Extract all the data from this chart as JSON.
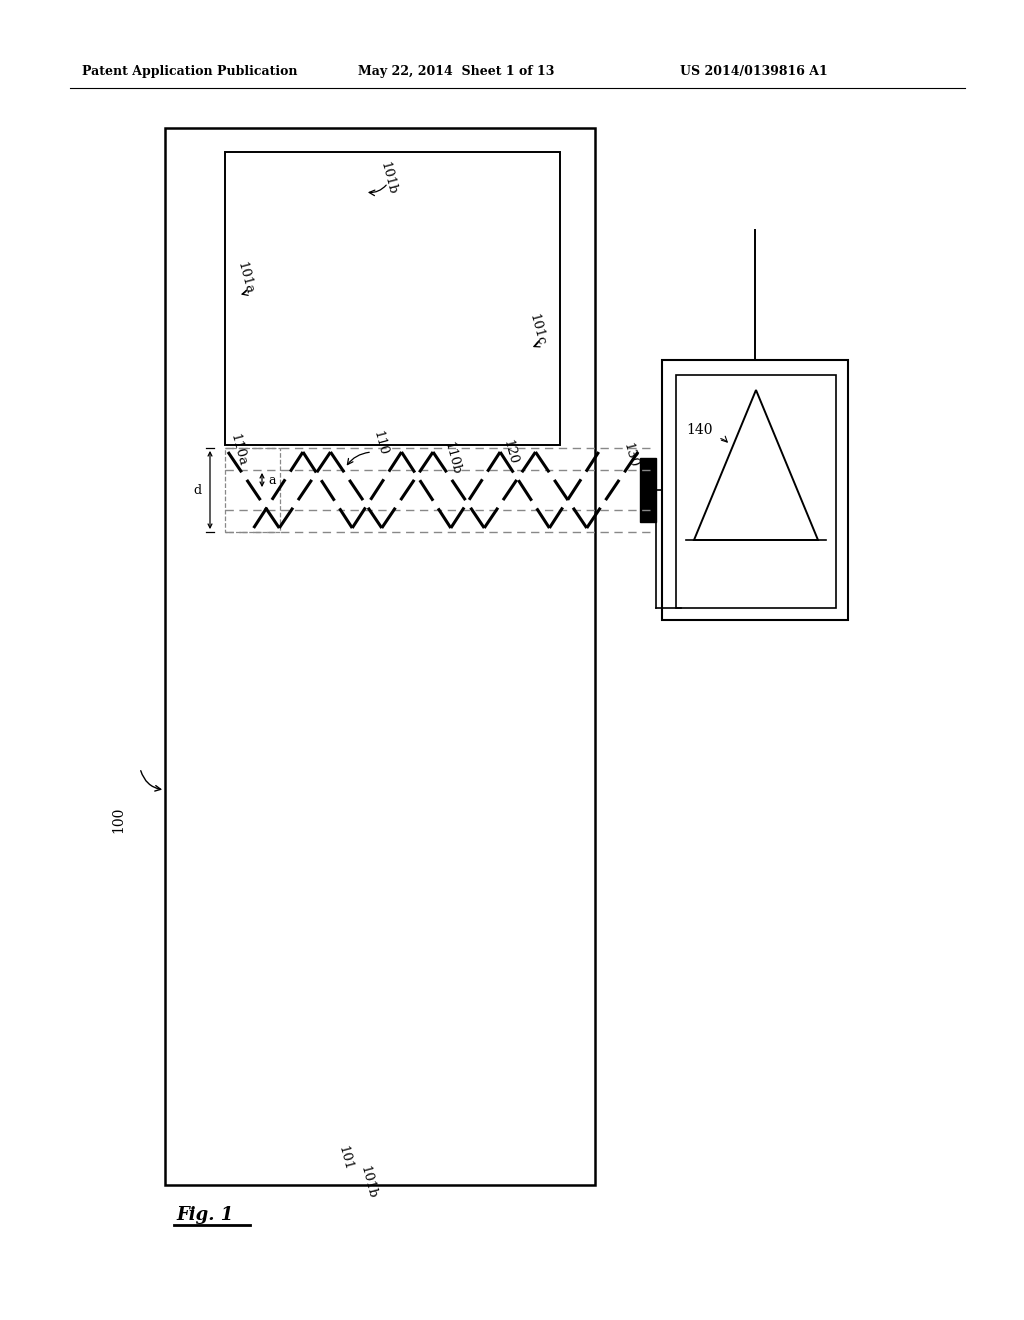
{
  "bg_color": "#ffffff",
  "header_left": "Patent Application Publication",
  "header_mid": "May 22, 2014  Sheet 1 of 13",
  "header_right": "US 2014/0139816 A1",
  "fig_label": "Fig. 1",
  "label_100": "100",
  "label_101": "101",
  "label_101b_top": "101b",
  "label_101b_bot": "101b",
  "label_101a": "101a",
  "label_101c": "101c",
  "label_110": "110",
  "label_110a": "110a",
  "label_110b": "110b",
  "label_120": "120",
  "label_130": "130",
  "label_140": "140",
  "label_a": "a",
  "label_d": "d"
}
